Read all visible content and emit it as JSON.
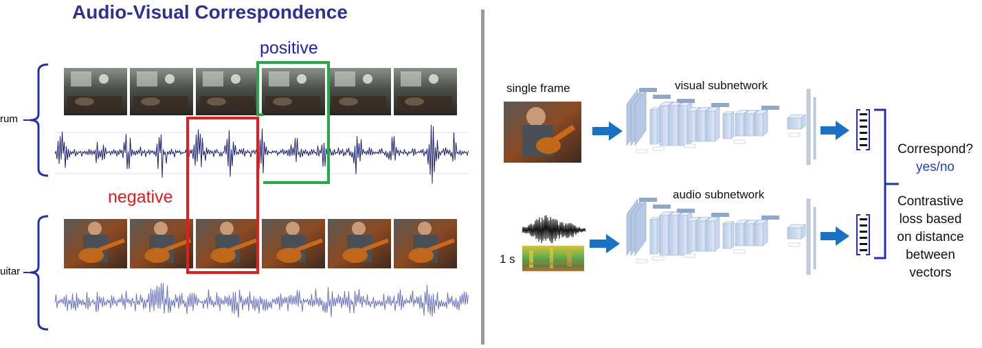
{
  "title": "Audio-Visual Correspondence",
  "left_panel": {
    "positive_label": "positive",
    "negative_label": "negative",
    "top_group_label": "rum",
    "bottom_group_label": "uitar"
  },
  "right_panel": {
    "single_frame_label": "single frame",
    "visual_subnetwork_label": "visual subnetwork",
    "audio_subnetwork_label": "audio subnetwork",
    "duration_label": "1 s",
    "correspond_question": "Correspond?",
    "yes_no": "yes/no",
    "loss_lines": [
      "Contrastive",
      "loss based",
      "on distance",
      "between",
      "vectors"
    ]
  },
  "colors": {
    "title": "#2e3192",
    "positive_box": "#22aa44",
    "negative_box": "#e61c1c",
    "drum_wave": "#1a1f6e",
    "guitar_wave": "#6a72bd",
    "arrow": "#1a72c4",
    "bracket": "#1f2fb0"
  }
}
